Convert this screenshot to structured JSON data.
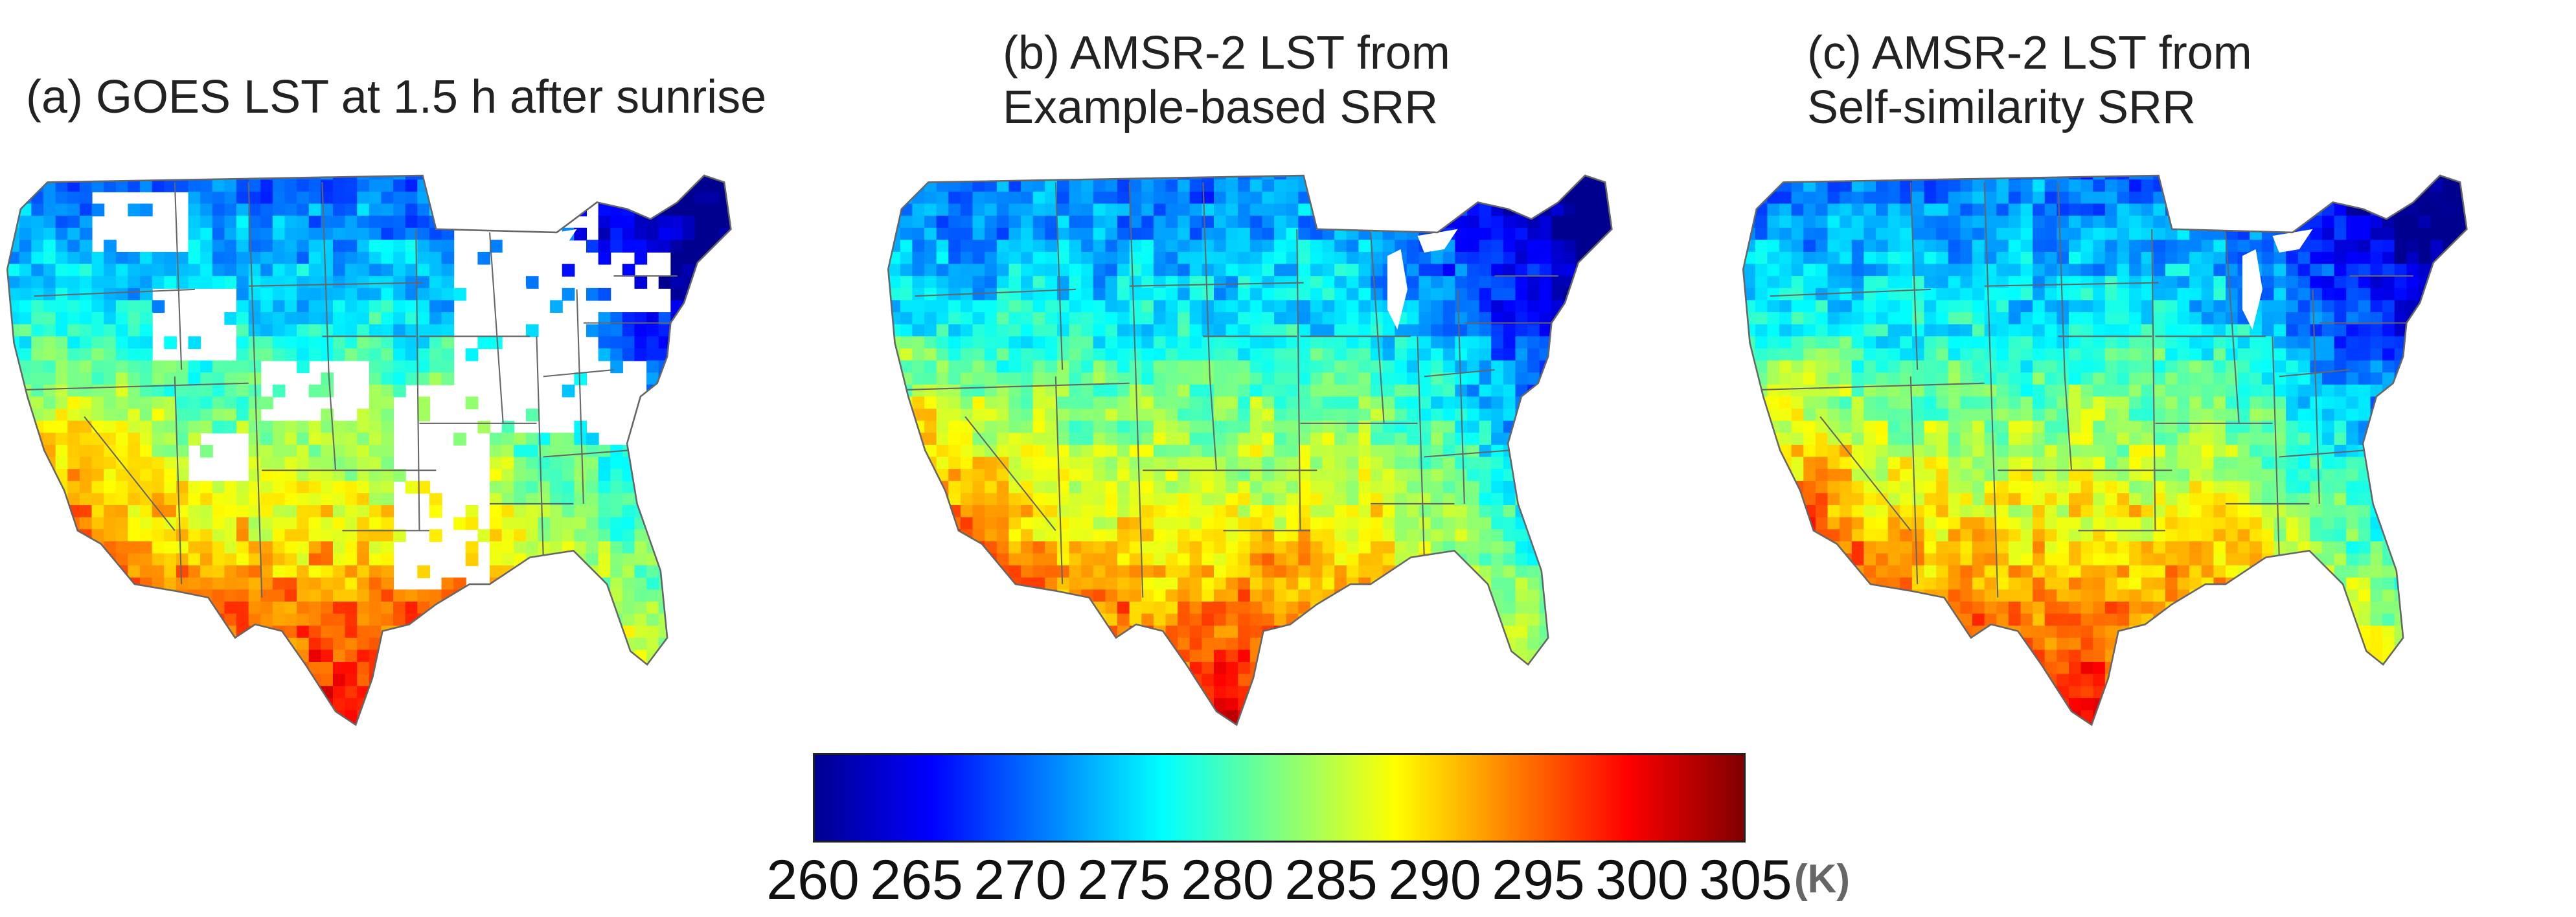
{
  "panels": [
    {
      "id": "a",
      "title_line1": "(a) GOES LST at 1.5 h after sunrise",
      "title_line2": "",
      "masked": true
    },
    {
      "id": "b",
      "title_line1": "(b) AMSR-2 LST from",
      "title_line2": "Example-based SRR",
      "masked": false
    },
    {
      "id": "c",
      "title_line1": "(c) AMSR-2 LST from",
      "title_line2": "Self-similarity SRR",
      "masked": false
    }
  ],
  "colorbar": {
    "min": 260,
    "max": 305,
    "ticks": [
      "260",
      "265",
      "270",
      "275",
      "280",
      "285",
      "290",
      "295",
      "300",
      "305"
    ],
    "unit": "(K)",
    "colors": [
      "#00008f",
      "#0000ff",
      "#0080ff",
      "#00ffff",
      "#80ff80",
      "#ffff00",
      "#ff8000",
      "#ff0000",
      "#800000"
    ]
  },
  "colors": {
    "state_border": "#666666",
    "missing": "#ffffff"
  }
}
